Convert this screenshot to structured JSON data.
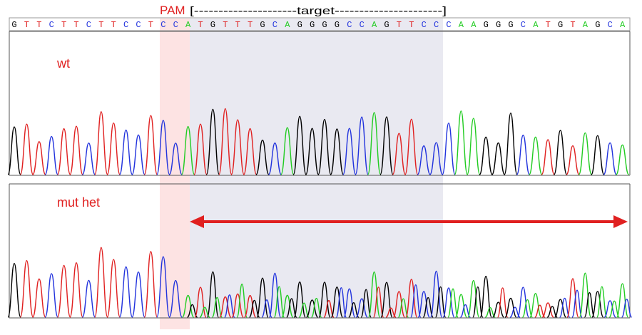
{
  "header": {
    "pam": "PAM",
    "target": "[---------------------target----------------------]"
  },
  "sequence": [
    "G",
    "T",
    "T",
    "C",
    "T",
    "T",
    "C",
    "T",
    "T",
    "C",
    "C",
    "T",
    "C",
    "C",
    "A",
    "T",
    "G",
    "T",
    "T",
    "T",
    "G",
    "C",
    "A",
    "G",
    "G",
    "G",
    "G",
    "C",
    "C",
    "A",
    "G",
    "T",
    "T",
    "C",
    "C",
    "C",
    "A",
    "A",
    "G",
    "G",
    "G",
    "C",
    "A",
    "T",
    "G",
    "T",
    "A",
    "G",
    "C",
    "A"
  ],
  "panels": [
    {
      "label": "wt"
    },
    {
      "label": "mut het"
    }
  ]
}
